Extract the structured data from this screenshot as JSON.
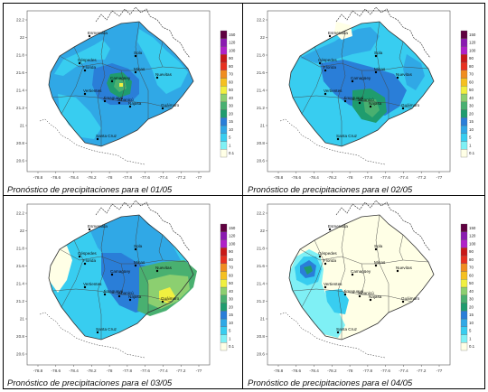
{
  "panels": [
    {
      "caption": "Pronóstico de precipitaciones para el 01/05"
    },
    {
      "caption": "Pronóstico de precipitaciones para el 02/05"
    },
    {
      "caption": "Pronóstico de precipitaciones para el 03/05"
    },
    {
      "caption": "Pronóstico de precipitaciones para el 04/05"
    }
  ],
  "chart_data": [
    {
      "type": "heatmap",
      "title": "Pronóstico de precipitaciones para el 01/05",
      "x_ticks": [
        "-78.8",
        "-78.6",
        "-78.4",
        "-78.2",
        "-78",
        "-77.8",
        "-77.6",
        "-77.4",
        "-77.2",
        "-77"
      ],
      "y_ticks": [
        "22.2",
        "22",
        "21.8",
        "21.6",
        "21.4",
        "21.2",
        "21",
        "20.8",
        "20.6"
      ],
      "xlim": [
        -79.0,
        -76.8
      ],
      "ylim": [
        20.5,
        22.3
      ],
      "colorbar": [
        "0.1",
        "1",
        "5",
        "10",
        "15",
        "20",
        "30",
        "40",
        "50",
        "60",
        "70",
        "80",
        "90",
        "100",
        "120",
        "150"
      ],
      "places": [
        "Esmeralda",
        "Céspedes",
        "Florida",
        "Sola",
        "Camagüey",
        "Minas",
        "Nuevitas",
        "Vertientes",
        "Jimaguayú",
        "Sibanicú",
        "Najasa",
        "Guáimaro",
        "Santa Cruz"
      ]
    },
    {
      "type": "heatmap",
      "title": "Pronóstico de precipitaciones para el 02/05",
      "x_ticks": [
        "-78.8",
        "-78.6",
        "-78.4",
        "-78.2",
        "-78",
        "-77.8",
        "-77.6",
        "-77.4",
        "-77.2",
        "-77"
      ],
      "y_ticks": [
        "22.2",
        "22",
        "21.8",
        "21.6",
        "21.4",
        "21.2",
        "21",
        "20.8",
        "20.6"
      ],
      "xlim": [
        -79.0,
        -76.8
      ],
      "ylim": [
        20.5,
        22.3
      ],
      "colorbar": [
        "0.1",
        "1",
        "5",
        "10",
        "15",
        "20",
        "30",
        "40",
        "50",
        "60",
        "70",
        "80",
        "90",
        "100",
        "120",
        "150"
      ],
      "places": [
        "Esmeralda",
        "Céspedes",
        "Florida",
        "Sola",
        "Camagüey",
        "Minas",
        "Nuevitas",
        "Vertientes",
        "Jimaguayú",
        "Sibanicú",
        "Najasa",
        "Guáimaro",
        "Santa Cruz"
      ]
    },
    {
      "type": "heatmap",
      "title": "Pronóstico de precipitaciones para el 03/05",
      "x_ticks": [
        "-78.8",
        "-78.6",
        "-78.4",
        "-78.2",
        "-78",
        "-77.8",
        "-77.6",
        "-77.4",
        "-77.2",
        "-77"
      ],
      "y_ticks": [
        "22.2",
        "22",
        "21.8",
        "21.6",
        "21.4",
        "21.2",
        "21",
        "20.8",
        "20.6"
      ],
      "xlim": [
        -79.0,
        -76.8
      ],
      "ylim": [
        20.5,
        22.3
      ],
      "colorbar": [
        "0.1",
        "1",
        "5",
        "10",
        "15",
        "20",
        "30",
        "40",
        "50",
        "60",
        "70",
        "80",
        "90",
        "100",
        "120",
        "150"
      ],
      "places": [
        "Esmeralda",
        "Céspedes",
        "Florida",
        "Sola",
        "Camagüey",
        "Minas",
        "Nuevitas",
        "Vertientes",
        "Jimaguayú",
        "Sibanicú",
        "Najasa",
        "Guáimaro",
        "Santa Cruz"
      ]
    },
    {
      "type": "heatmap",
      "title": "Pronóstico de precipitaciones para el 04/05",
      "x_ticks": [
        "-78.8",
        "-78.6",
        "-78.4",
        "-78.2",
        "-78",
        "-77.8",
        "-77.6",
        "-77.4",
        "-77.2",
        "-77"
      ],
      "y_ticks": [
        "22.2",
        "22",
        "21.8",
        "21.6",
        "21.4",
        "21.2",
        "21",
        "20.8",
        "20.6"
      ],
      "xlim": [
        -79.0,
        -76.8
      ],
      "ylim": [
        20.5,
        22.3
      ],
      "colorbar": [
        "0.1",
        "1",
        "5",
        "10",
        "15",
        "20",
        "30",
        "40",
        "50",
        "60",
        "70",
        "80",
        "90",
        "100",
        "120",
        "150"
      ],
      "places": [
        "Esmeralda",
        "Céspedes",
        "Florida",
        "Sola",
        "Camagüey",
        "Minas",
        "Nuevitas",
        "Vertientes",
        "Jimaguayú",
        "Sibanicú",
        "Najasa",
        "Guáimaro",
        "Santa Cruz"
      ]
    }
  ],
  "colors": {
    "scale": [
      "#ffffe6",
      "#7ff0f5",
      "#38cdf0",
      "#30a8e6",
      "#2a7ed8",
      "#1f9c6e",
      "#49b070",
      "#8ccf70",
      "#f0f040",
      "#f5c020",
      "#f08c20",
      "#e83020",
      "#c81818",
      "#b020c8",
      "#8a1ab0",
      "#600040"
    ]
  }
}
